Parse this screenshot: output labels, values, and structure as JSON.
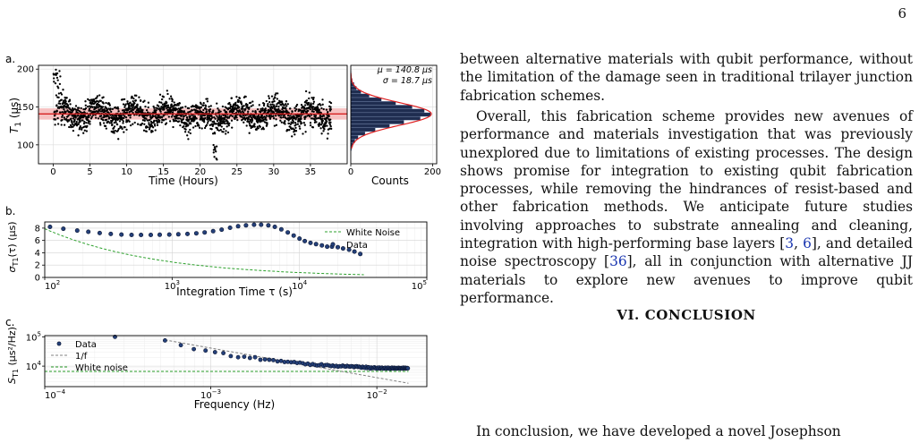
{
  "page": {
    "number": "6"
  },
  "figure": {
    "panel_a": {
      "label": "a.",
      "ylabel": "T",
      "ylabel_sub": "1",
      "ylabel_unit": " (μs)",
      "xlabel": "Time (Hours)",
      "xticks": [
        "0",
        "5",
        "10",
        "15",
        "20",
        "25",
        "30",
        "35"
      ],
      "yticks": [
        "100",
        "150",
        "200"
      ],
      "hist_xlabel": "Counts",
      "hist_xticks": [
        "0",
        "200"
      ],
      "mu_text": "μ = 140.8 μs",
      "sigma_text": "σ = 18.7 μs",
      "colors": {
        "points": "#000000",
        "mean_line": "#d62020",
        "band": "#f4b3b3",
        "hist_bar": "#1f2d50",
        "fit": "#e02020"
      }
    },
    "panel_b": {
      "label": "b.",
      "ylabel": "σ",
      "ylabel_sub": "T1",
      "ylabel_unit": "(τ) (μs)",
      "xlabel": "Integration Time τ (s)",
      "yticks": [
        "0",
        "2",
        "4",
        "6",
        "8"
      ],
      "xticks": [
        {
          "base": "10",
          "exp": "2"
        },
        {
          "base": "10",
          "exp": "3"
        },
        {
          "base": "10",
          "exp": "4"
        },
        {
          "base": "10",
          "exp": "5"
        }
      ],
      "legend": [
        "White Noise",
        "Data"
      ],
      "colors": {
        "data": "#24407a",
        "white_noise": "#2ca02c"
      }
    },
    "panel_c": {
      "label": "c.",
      "ylabel": "S",
      "ylabel_sub": "T1",
      "ylabel_unit": " (μs²/Hz)",
      "xlabel": "Frequency (Hz)",
      "yticks": [
        {
          "base": "10",
          "exp": "5"
        },
        {
          "base": "10",
          "exp": "4"
        }
      ],
      "xticks": [
        {
          "base": "10",
          "exp": "−4"
        },
        {
          "base": "10",
          "exp": "−3"
        },
        {
          "base": "10",
          "exp": "−2"
        }
      ],
      "legend": [
        "Data",
        "1/f",
        "White noise"
      ],
      "colors": {
        "data": "#24407a",
        "one_over_f": "#808080",
        "white_noise": "#2ca02c"
      }
    }
  },
  "chart_data": [
    {
      "type": "scatter",
      "title": "",
      "xlabel": "Time (Hours)",
      "ylabel": "T1 (μs)",
      "xlim": [
        -2,
        40
      ],
      "ylim": [
        75,
        205
      ],
      "mean": 140.8,
      "sigma": 18.7,
      "note_points": "dense time trace, ~2000 points, roughly 100–200 μs around mean 140.8"
    },
    {
      "type": "bar",
      "title": "",
      "xlabel": "Counts",
      "orientation": "horizontal",
      "xlim": [
        0,
        210
      ],
      "categories": [
        95,
        100,
        105,
        110,
        115,
        120,
        125,
        130,
        135,
        140,
        145,
        150,
        155,
        160,
        165,
        170,
        175,
        180,
        185,
        190,
        195
      ],
      "values": [
        2,
        5,
        10,
        18,
        35,
        60,
        95,
        130,
        170,
        195,
        180,
        150,
        110,
        75,
        45,
        25,
        14,
        8,
        4,
        2,
        1
      ]
    },
    {
      "type": "line",
      "title": "",
      "xlabel": "Integration Time τ (s)",
      "ylabel": "σT1(τ) (μs)",
      "xscale": "log",
      "xlim": [
        100,
        100000
      ],
      "ylim": [
        0,
        9
      ],
      "series": [
        {
          "name": "Data",
          "x": [
            110,
            140,
            180,
            220,
            270,
            330,
            400,
            480,
            570,
            680,
            800,
            950,
            1120,
            1320,
            1550,
            1800,
            2100,
            2450,
            2850,
            3300,
            3800,
            4400,
            5000,
            5700,
            6400,
            7200,
            8100,
            9000,
            10000,
            11000,
            12200,
            13500,
            15000,
            16500,
            18000,
            20000,
            22000,
            24500,
            27000,
            30000
          ],
          "values": [
            8.2,
            7.9,
            7.6,
            7.4,
            7.2,
            7.05,
            6.95,
            6.9,
            6.9,
            6.9,
            6.92,
            6.95,
            7.0,
            7.05,
            7.15,
            7.3,
            7.5,
            7.75,
            8.05,
            8.3,
            8.45,
            8.55,
            8.55,
            8.45,
            8.2,
            7.8,
            7.3,
            6.8,
            6.3,
            5.9,
            5.6,
            5.4,
            5.2,
            5.0,
            5.0,
            4.9,
            4.7,
            4.5,
            4.2,
            3.8
          ]
        },
        {
          "name": "White Noise",
          "x": [
            100,
            200,
            400,
            800,
            1600,
            3200,
            6400,
            12800,
            25600,
            32000
          ],
          "values": [
            7.9,
            5.6,
            3.95,
            2.8,
            1.98,
            1.4,
            0.99,
            0.7,
            0.49,
            0.44
          ]
        }
      ]
    },
    {
      "type": "scatter",
      "title": "",
      "xlabel": "Frequency (Hz)",
      "ylabel": "ST1 (μs²/Hz)",
      "xscale": "log",
      "yscale": "log",
      "xlim": [
        0.0001,
        0.02
      ],
      "ylim": [
        2000,
        110000
      ],
      "series": [
        {
          "name": "Data",
          "x": [
            0.000265,
            0.00053,
            0.00066,
            0.00079,
            0.00093,
            0.00106,
            0.00119,
            0.00132,
            0.00146,
            0.00159,
            0.00172,
            0.00185,
            0.00199,
            0.00212,
            0.00225,
            0.00238,
            0.00252,
            0.00265,
            0.00278,
            0.00291,
            0.00305,
            0.00318,
            0.00331,
            0.00344,
            0.00358,
            0.00371,
            0.00384,
            0.00397,
            0.00411,
            0.00424,
            0.00437,
            0.0045,
            0.00464,
            0.00477,
            0.0049,
            0.00503,
            0.00517,
            0.0053,
            0.00543,
            0.00556,
            0.0057,
            0.00583,
            0.00596,
            0.00609,
            0.00623,
            0.00636,
            0.00649,
            0.00662,
            0.00676,
            0.00689,
            0.00702,
            0.00715,
            0.00729,
            0.00742,
            0.00755,
            0.00768,
            0.00782,
            0.00795,
            0.00808,
            0.00821,
            0.00835,
            0.00848,
            0.00861,
            0.00874,
            0.00888,
            0.00901,
            0.00914,
            0.00927,
            0.00941,
            0.00954,
            0.00967,
            0.0098,
            0.00994,
            0.01007,
            0.0102,
            0.01033,
            0.01047,
            0.0106,
            0.01073,
            0.01086,
            0.011,
            0.01113,
            0.01126,
            0.01139,
            0.01153,
            0.01166,
            0.01179,
            0.01192,
            0.01206,
            0.01219,
            0.01232,
            0.01245,
            0.01259,
            0.01272,
            0.01285,
            0.01298,
            0.01312,
            0.01325,
            0.01338,
            0.01351,
            0.01365,
            0.01378,
            0.01391,
            0.01404,
            0.01418,
            0.01431,
            0.01444,
            0.01457,
            0.01471,
            0.01484,
            0.01497,
            0.0151,
            0.01524,
            0.01537
          ],
          "values": [
            100000,
            75000,
            52000,
            38000,
            34000,
            30000,
            28000,
            22000,
            20000,
            21000,
            19000,
            20000,
            16500,
            17000,
            16500,
            16000,
            14500,
            15000,
            13800,
            14000,
            13500,
            13800,
            12800,
            13200,
            12500,
            11500,
            12200,
            11000,
            11800,
            11000,
            10500,
            10800,
            11600,
            10200,
            10800,
            11000,
            10400,
            10000,
            10500,
            9800,
            10200,
            9500,
            10000,
            9800,
            10400,
            9900,
            9600,
            10200,
            9800,
            9500,
            10000,
            9800,
            9200,
            9700,
            10000,
            9400,
            9600,
            9200,
            8800,
            9500,
            9000,
            8700,
            9500,
            8600,
            9200,
            9000,
            8200,
            9000,
            8500,
            8700,
            9100,
            8500,
            8200,
            8800,
            8400,
            9000,
            8300,
            8600,
            8900,
            8400,
            8200,
            8700,
            8800,
            8200,
            8500,
            8900,
            8300,
            8700,
            8100,
            8600,
            8900,
            8400,
            8200,
            8800,
            8600,
            8300,
            8700,
            8200,
            8500,
            8800,
            8400,
            8600,
            8300,
            8700,
            8500,
            8200,
            8900,
            8400,
            8600,
            8800,
            8300,
            8500,
            8700,
            8400
          ]
        },
        {
          "name": "1/f",
          "x": [
            0.00053,
            0.0155
          ],
          "values": [
            78000,
            2600
          ]
        },
        {
          "name": "White noise",
          "x": [
            0.0001,
            0.0155
          ],
          "values": [
            6600,
            6600
          ]
        }
      ]
    }
  ],
  "text": {
    "para1": "between alternative materials with qubit performance, without the limitation of the damage seen in traditional trilayer junction fabrication schemes.",
    "para2_a": "Overall, this fabrication scheme provides new avenues of performance and materials investigation that was previously unexplored due to limitations of existing processes. The design shows promise for integration to existing qubit fabrication processes, while removing the hindrances of resist-based and other fabrication methods. We anticipate future studies involving approaches to substrate annealing and cleaning, integration with high-performing base layers [",
    "cite_3": "3",
    "sep_1": ", ",
    "cite_6": "6",
    "para2_b": "], and detailed noise spectroscopy [",
    "cite_36": "36",
    "para2_c": "], all in conjunction with alternative JJ materials to explore new avenues to improve qubit performance.",
    "section_heading": "VI.   CONCLUSION",
    "para3": "In conclusion, we have developed a novel Josephson"
  }
}
